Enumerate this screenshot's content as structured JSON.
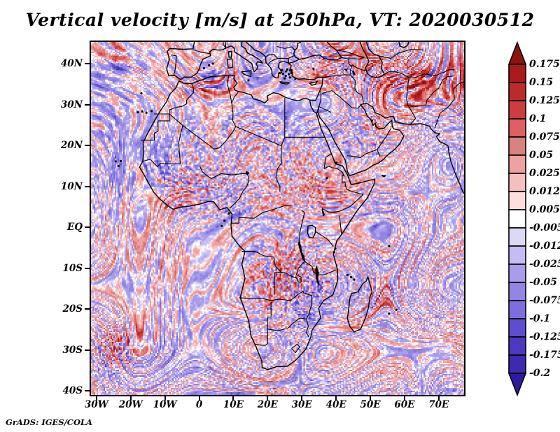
{
  "title": "Vertical velocity [m/s] at 250hPa, VT: 2020030512",
  "attribution": "GrADS: IGES/COLA",
  "axes": {
    "lat_ticks": [
      {
        "label": "40N",
        "value": 40
      },
      {
        "label": "30N",
        "value": 30
      },
      {
        "label": "20N",
        "value": 20
      },
      {
        "label": "10N",
        "value": 10
      },
      {
        "label": "EQ",
        "value": 0
      },
      {
        "label": "10S",
        "value": -10
      },
      {
        "label": "20S",
        "value": -20
      },
      {
        "label": "30S",
        "value": -30
      },
      {
        "label": "40S",
        "value": -40
      }
    ],
    "lon_ticks": [
      {
        "label": "30W",
        "value": -30
      },
      {
        "label": "20W",
        "value": -20
      },
      {
        "label": "10W",
        "value": -10
      },
      {
        "label": "0",
        "value": 0
      },
      {
        "label": "10E",
        "value": 10
      },
      {
        "label": "20E",
        "value": 20
      },
      {
        "label": "30E",
        "value": 30
      },
      {
        "label": "40E",
        "value": 40
      },
      {
        "label": "50E",
        "value": 50
      },
      {
        "label": "60E",
        "value": 60
      },
      {
        "label": "70E",
        "value": 70
      }
    ]
  },
  "colorbar": {
    "tick_labels": [
      "0.175",
      "0.15",
      "0.125",
      "0.1",
      "0.075",
      "0.05",
      "0.025",
      "0.0125",
      "0.005",
      "-0.005",
      "-0.0125",
      "-0.025",
      "-0.05",
      "-0.075",
      "-0.1",
      "-0.125",
      "-0.175",
      "-0.2"
    ],
    "segment_colors": [
      "#8e1311",
      "#a81b1b",
      "#bc2b2b",
      "#cc3e3e",
      "#df6060",
      "#d98282",
      "#eea1a1",
      "#f6bfbf",
      "#fcdede",
      "#ffffff",
      "#dcd9f7",
      "#c4bcf2",
      "#a89ceb",
      "#9285e3",
      "#7e6edb",
      "#5e4ecd",
      "#4b39bf",
      "#3d2ab0",
      "#2e1aa5"
    ]
  },
  "chart_data": {
    "type": "heatmap",
    "title": "Vertical velocity [m/s] at 250hPa, VT: 2020030512",
    "variable": "Vertical velocity",
    "units": "m/s",
    "pressure_level": "250hPa",
    "valid_time": "2020030512",
    "x_tick_labels": [
      "30W",
      "20W",
      "10W",
      "0",
      "10E",
      "20E",
      "30E",
      "40E",
      "50E",
      "60E",
      "70E"
    ],
    "y_tick_labels": [
      "40N",
      "30N",
      "20N",
      "10N",
      "EQ",
      "10S",
      "20S",
      "30S",
      "40S"
    ],
    "color_levels_m_per_s": [
      0.175,
      0.15,
      0.125,
      0.1,
      0.075,
      0.05,
      0.025,
      0.0125,
      0.005,
      -0.005,
      -0.0125,
      -0.025,
      -0.05,
      -0.075,
      -0.1,
      -0.125,
      -0.175,
      -0.2
    ],
    "palette_red_positive_blue_negative": [
      "#8e1311",
      "#a81b1b",
      "#bc2b2b",
      "#cc3e3e",
      "#df6060",
      "#d98282",
      "#eea1a1",
      "#f6bfbf",
      "#fcdede",
      "#ffffff",
      "#dcd9f7",
      "#c4bcf2",
      "#a89ceb",
      "#9285e3",
      "#7e6edb",
      "#5e4ecd",
      "#4b39bf",
      "#3d2ab0",
      "#2e1aa5"
    ],
    "legend_position": "right",
    "region": "Africa / Middle East sector shown by axis ticks",
    "grid": "off",
    "attribution": "GrADS: IGES/COLA"
  }
}
